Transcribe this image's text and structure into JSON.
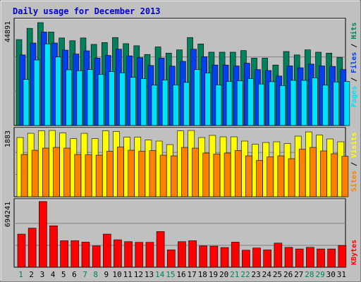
{
  "title": "Daily usage for December 2013",
  "colors": {
    "background": "#c0c0c0",
    "title": "#0000cc",
    "hits": "#00805c",
    "files": "#0040f0",
    "pages": "#00e0ff",
    "visits": "#ffff00",
    "sites": "#ff8000",
    "kbytes": "#ff0000",
    "weekend_day": "#00805c",
    "weekday": "#000000"
  },
  "chart_data": [
    {
      "type": "bar",
      "panel": "hits-files-pages",
      "y_tick_label": "44891",
      "ylim": [
        0,
        44891
      ],
      "legend": [
        "Pages",
        "Files",
        "Hits"
      ],
      "categories": [
        "1",
        "2",
        "3",
        "4",
        "5",
        "6",
        "7",
        "8",
        "9",
        "10",
        "11",
        "12",
        "13",
        "14",
        "15",
        "16",
        "17",
        "18",
        "19",
        "20",
        "21",
        "22",
        "23",
        "24",
        "25",
        "26",
        "27",
        "28",
        "29",
        "30",
        "31"
      ],
      "series": [
        {
          "name": "Hits",
          "values": [
            37500,
            42400,
            44891,
            40800,
            38200,
            37000,
            38200,
            35400,
            36200,
            38400,
            35700,
            34800,
            31000,
            34300,
            31600,
            33000,
            38400,
            35600,
            32000,
            32000,
            32000,
            32700,
            29400,
            29400,
            26400,
            32300,
            30800,
            33000,
            32000,
            31600,
            29700
          ]
        },
        {
          "name": "Files",
          "values": [
            30800,
            36000,
            40800,
            36000,
            32900,
            31200,
            32600,
            29400,
            30600,
            33300,
            30400,
            29600,
            26200,
            29400,
            25900,
            28000,
            33300,
            30000,
            26400,
            26400,
            26000,
            27200,
            24400,
            24000,
            21600,
            26000,
            25200,
            26800,
            26000,
            25800,
            24400
          ]
        },
        {
          "name": "Pages",
          "values": [
            20100,
            28600,
            35600,
            29900,
            24300,
            23900,
            24400,
            22300,
            23500,
            23000,
            21000,
            20500,
            17600,
            19800,
            17700,
            18800,
            24400,
            22900,
            17700,
            19200,
            19500,
            20500,
            18100,
            19100,
            17400,
            19700,
            19700,
            20800,
            17600,
            19000,
            19200
          ]
        }
      ]
    },
    {
      "type": "bar",
      "panel": "visits-sites",
      "y_tick_label": "1883",
      "ylim": [
        0,
        1883
      ],
      "legend": [
        "Sites",
        "Visits"
      ],
      "categories": [
        "1",
        "2",
        "3",
        "4",
        "5",
        "6",
        "7",
        "8",
        "9",
        "10",
        "11",
        "12",
        "13",
        "14",
        "15",
        "16",
        "17",
        "18",
        "19",
        "20",
        "21",
        "22",
        "23",
        "24",
        "25",
        "26",
        "27",
        "28",
        "29",
        "30",
        "31"
      ],
      "series": [
        {
          "name": "Visits",
          "values": [
            1680,
            1800,
            1870,
            1880,
            1810,
            1650,
            1800,
            1650,
            1870,
            1850,
            1690,
            1690,
            1610,
            1580,
            1480,
            1870,
            1880,
            1680,
            1740,
            1700,
            1700,
            1580,
            1490,
            1540,
            1560,
            1510,
            1720,
            1840,
            1750,
            1640,
            1560
          ]
        },
        {
          "name": "Sites",
          "values": [
            1200,
            1320,
            1380,
            1400,
            1380,
            1200,
            1190,
            1180,
            1290,
            1410,
            1320,
            1290,
            1310,
            1180,
            1160,
            1400,
            1380,
            1240,
            1210,
            1240,
            1310,
            1160,
            1030,
            1130,
            1160,
            1080,
            1350,
            1400,
            1300,
            1220,
            1150
          ]
        }
      ]
    },
    {
      "type": "bar",
      "panel": "kbytes",
      "y_tick_label": "694241",
      "ylim": [
        0,
        694241
      ],
      "legend": [
        "KBytes"
      ],
      "categories": [
        "1",
        "2",
        "3",
        "4",
        "5",
        "6",
        "7",
        "8",
        "9",
        "10",
        "11",
        "12",
        "13",
        "14",
        "15",
        "16",
        "17",
        "18",
        "19",
        "20",
        "21",
        "22",
        "23",
        "24",
        "25",
        "26",
        "27",
        "28",
        "29",
        "30",
        "31"
      ],
      "series": [
        {
          "name": "KBytes",
          "values": [
            350000,
            413000,
            694241,
            438000,
            280000,
            280000,
            265000,
            225000,
            350000,
            290000,
            270000,
            263000,
            263000,
            377000,
            183000,
            270000,
            280000,
            225000,
            223000,
            208000,
            265000,
            180000,
            203000,
            183000,
            255000,
            210000,
            193000,
            210000,
            193000,
            193000,
            230000
          ]
        }
      ]
    }
  ]
}
